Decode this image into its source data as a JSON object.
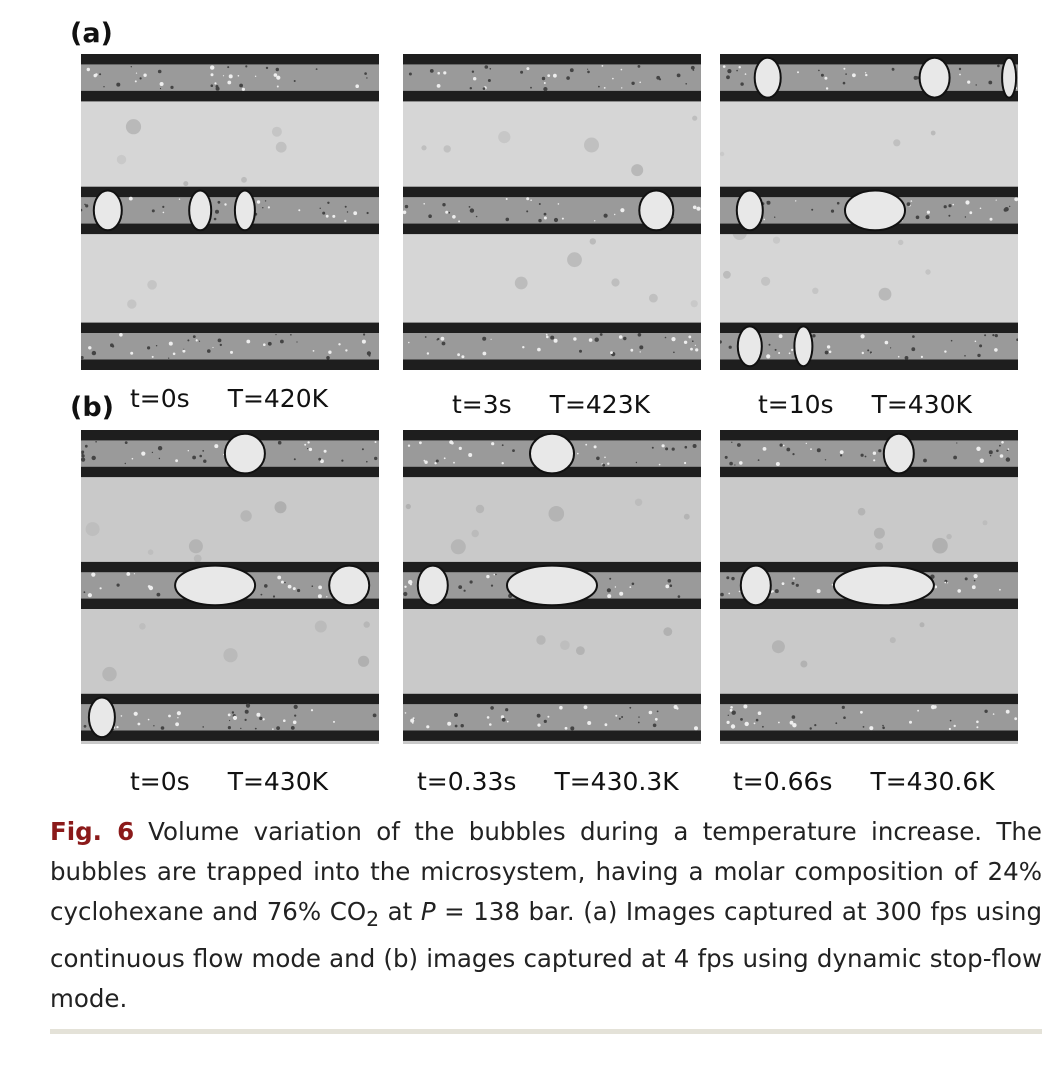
{
  "panels": [
    {
      "letter": "(a)",
      "frames": [
        {
          "time": "t=0s",
          "temp": "T=420K"
        },
        {
          "time": "t=3s",
          "temp": "T=423K"
        },
        {
          "time": "t=10s",
          "temp": "T=430K"
        }
      ]
    },
    {
      "letter": "(b)",
      "frames": [
        {
          "time": "t=0s",
          "temp": "T=430K"
        },
        {
          "time": "t=0.33s",
          "temp": "T=430.3K"
        },
        {
          "time": "t=0.66s",
          "temp": "T=430.6K"
        }
      ]
    }
  ],
  "caption": {
    "label": "Fig. 6",
    "part1": "Volume variation of the bubbles during a temperature increase. The bubbles are trapped into the microsystem, having a molar composition of 24% cyclohexane and 76% CO",
    "sub": "2",
    "part2": " at ",
    "var": "P",
    "part3": " = 138 bar. (a) Images captured at 300 fps using continuous flow mode and (b) images captured at 4 fps using dynamic stop-flow mode."
  },
  "colors": {
    "caption_label": "#8b1a1a",
    "channel_wall": "#1e1e1e",
    "background": "#d3d3d3"
  }
}
